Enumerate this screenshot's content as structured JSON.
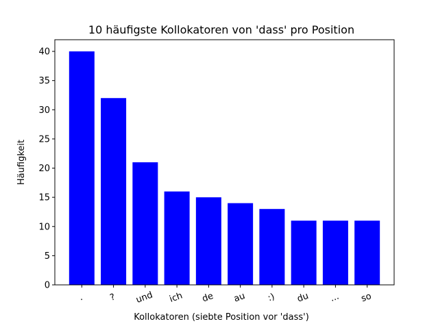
{
  "chart_data": {
    "type": "bar",
    "title": "10 häufigste Kollokatoren von 'dass' pro Position",
    "xlabel": "Kollokatoren (siebte Position vor 'dass')",
    "ylabel": "Häufigkeit",
    "categories": [
      ".",
      "?",
      "und",
      "ich",
      "de",
      "au",
      ":)",
      "du",
      "...",
      "so"
    ],
    "values": [
      40,
      32,
      21,
      16,
      15,
      14,
      13,
      11,
      11,
      11
    ],
    "ylim": [
      0,
      42
    ],
    "yticks": [
      0,
      5,
      10,
      15,
      20,
      25,
      30,
      35,
      40
    ],
    "bar_color": "#0000ff",
    "grid": false
  }
}
